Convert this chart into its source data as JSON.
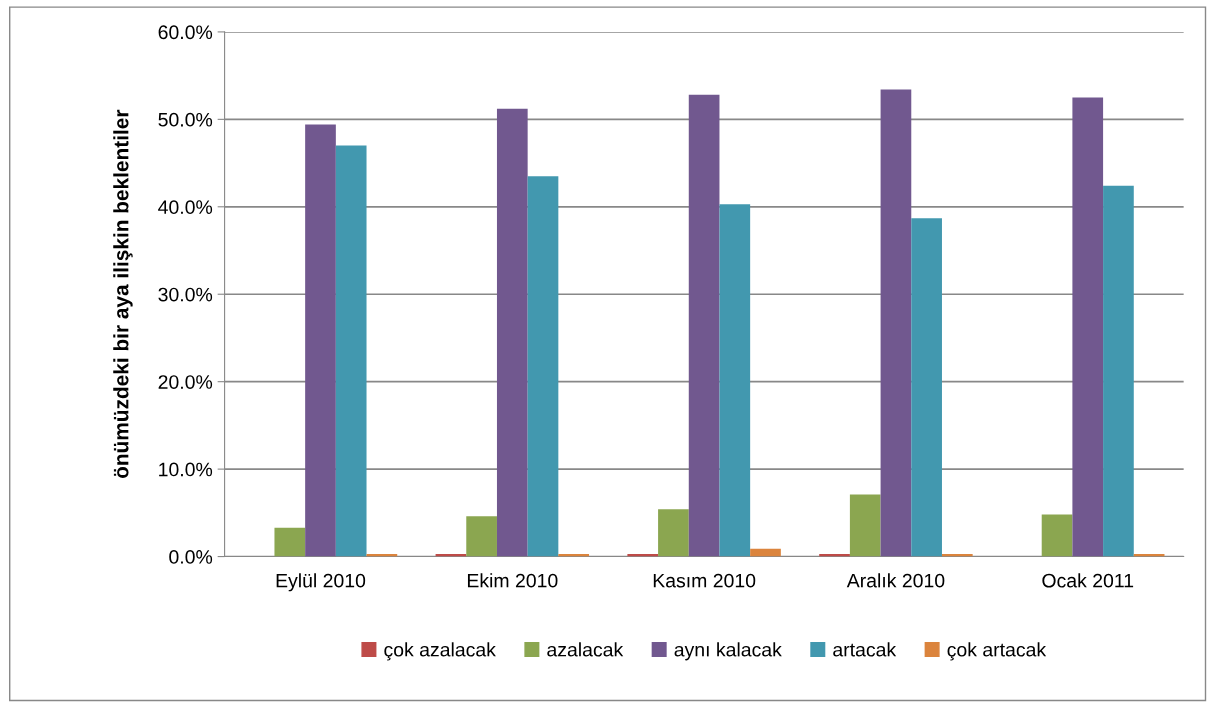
{
  "chart_data": {
    "type": "bar",
    "ylabel": "önümüzdeki bir aya ilişkin beklentiler",
    "categories": [
      "Eylül 2010",
      "Ekim 2010",
      "Kasım 2010",
      "Aralık 2010",
      "Ocak 2011"
    ],
    "series": [
      {
        "name": "çok azalacak",
        "color": "#be4b48",
        "values": [
          0,
          0.3,
          0.3,
          0.3,
          0
        ]
      },
      {
        "name": "azalacak",
        "color": "#8ba650",
        "values": [
          3.3,
          4.6,
          5.4,
          7.1,
          4.8
        ]
      },
      {
        "name": "aynı kalacak",
        "color": "#71588f",
        "values": [
          49.4,
          51.2,
          52.8,
          53.4,
          52.5
        ]
      },
      {
        "name": "artacak",
        "color": "#4298af",
        "values": [
          47.0,
          43.5,
          40.3,
          38.7,
          42.4
        ]
      },
      {
        "name": "çok artacak",
        "color": "#db843d",
        "values": [
          0.3,
          0.3,
          0.9,
          0.3,
          0.3
        ]
      }
    ],
    "ylim": [
      0,
      60
    ],
    "yticks": [
      {
        "value": 0,
        "label": "0.0%"
      },
      {
        "value": 10,
        "label": "10.0%"
      },
      {
        "value": 20,
        "label": "20.0%"
      },
      {
        "value": 30,
        "label": "30.0%"
      },
      {
        "value": 40,
        "label": "40.0%"
      },
      {
        "value": 50,
        "label": "50.0%"
      },
      {
        "value": 60,
        "label": "60.0%"
      }
    ],
    "grid": "y",
    "legend": "bottom"
  }
}
